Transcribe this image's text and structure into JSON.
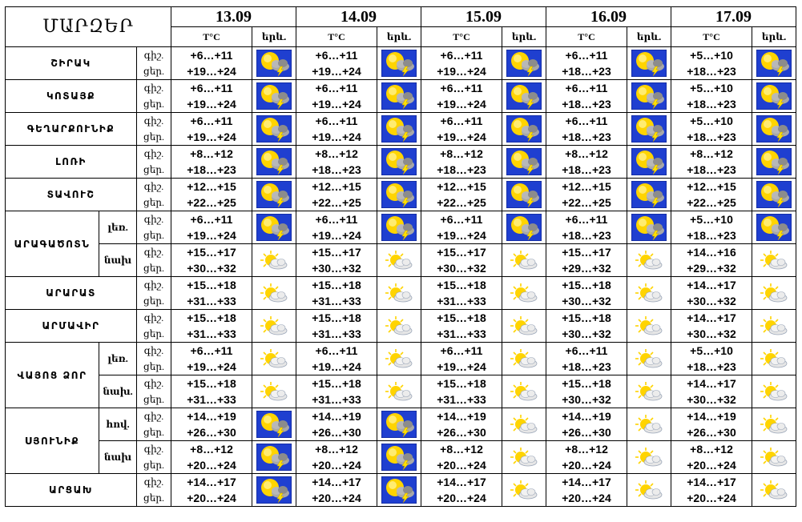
{
  "header": {
    "title": "ՄԱՐԶԵՐ",
    "temp_label": "T°C",
    "weather_label": "երև.",
    "dates": [
      "13.09",
      "14.09",
      "15.09",
      "16.09",
      "17.09"
    ]
  },
  "rows": [
    {
      "region": "ՇԻՐԱԿ",
      "sub": "",
      "night": "գիշ.",
      "day": "ցեր.",
      "cells": [
        [
          "+6…+11",
          "+19…+24",
          "storm"
        ],
        [
          "+6…+11",
          "+19…+24",
          "storm"
        ],
        [
          "+6…+11",
          "+19…+24",
          "storm"
        ],
        [
          "+6…+11",
          "+18…+23",
          "storm"
        ],
        [
          "+5…+10",
          "+18…+23",
          "storm"
        ]
      ]
    },
    {
      "region": "ԿՈՏԱՅՔ",
      "sub": "",
      "night": "գիշ.",
      "day": "ցեր.",
      "cells": [
        [
          "+6…+11",
          "+19…+24",
          "storm"
        ],
        [
          "+6…+11",
          "+19…+24",
          "storm"
        ],
        [
          "+6…+11",
          "+19…+24",
          "storm"
        ],
        [
          "+6…+11",
          "+18…+23",
          "storm"
        ],
        [
          "+5…+10",
          "+18…+23",
          "storm"
        ]
      ]
    },
    {
      "region": "ԳԵՂԱՐՔՈՒՆԻՔ",
      "sub": "",
      "night": "գիշ.",
      "day": "ցեր.",
      "cells": [
        [
          "+6…+11",
          "+19…+24",
          "storm"
        ],
        [
          "+6…+11",
          "+19…+24",
          "storm"
        ],
        [
          "+6…+11",
          "+19…+24",
          "storm"
        ],
        [
          "+6…+11",
          "+18…+23",
          "storm"
        ],
        [
          "+5…+10",
          "+18…+23",
          "storm"
        ]
      ]
    },
    {
      "region": "ԼՈՌԻ",
      "sub": "",
      "night": "գիշ.",
      "day": "ցեր.",
      "cells": [
        [
          "+8…+12",
          "+18…+23",
          "storm"
        ],
        [
          "+8…+12",
          "+18…+23",
          "storm"
        ],
        [
          "+8…+12",
          "+18…+23",
          "storm"
        ],
        [
          "+8…+12",
          "+18…+23",
          "storm"
        ],
        [
          "+8…+12",
          "+18…+23",
          "storm"
        ]
      ]
    },
    {
      "region": "ՏԱՎՈՒՇ",
      "sub": "",
      "night": "գիշ.",
      "day": "ցեր.",
      "cells": [
        [
          "+12…+15",
          "+22…+25",
          "storm"
        ],
        [
          "+12…+15",
          "+22…+25",
          "storm"
        ],
        [
          "+12…+15",
          "+22…+25",
          "storm"
        ],
        [
          "+12…+15",
          "+22…+25",
          "storm"
        ],
        [
          "+12…+15",
          "+22…+25",
          "storm"
        ]
      ]
    },
    {
      "region": "ԱՐԱԳԱԾՈՏՆ",
      "sub": "լեռ.",
      "night": "գիշ.",
      "day": "ցեր.",
      "cells": [
        [
          "+6…+11",
          "+19…+24",
          "storm"
        ],
        [
          "+6…+11",
          "+19…+24",
          "storm"
        ],
        [
          "+6…+11",
          "+19…+24",
          "storm"
        ],
        [
          "+6…+11",
          "+18…+23",
          "storm"
        ],
        [
          "+5…+10",
          "+18…+23",
          "storm"
        ]
      ]
    },
    {
      "region": "",
      "sub": "նախ",
      "night": "գիշ.",
      "day": "ցեր.",
      "cells": [
        [
          "+15…+17",
          "+30…+32",
          "sun"
        ],
        [
          "+15…+17",
          "+30…+32",
          "sun"
        ],
        [
          "+15…+17",
          "+30…+32",
          "sun"
        ],
        [
          "+15…+17",
          "+29…+32",
          "sun"
        ],
        [
          "+14…+16",
          "+29…+32",
          "sun"
        ]
      ]
    },
    {
      "region": "ԱՐԱՐԱՏ",
      "sub": "",
      "night": "գիշ.",
      "day": "ցեր.",
      "cells": [
        [
          "+15…+18",
          "+31…+33",
          "sun"
        ],
        [
          "+15…+18",
          "+31…+33",
          "sun"
        ],
        [
          "+15…+18",
          "+31…+33",
          "sun"
        ],
        [
          "+15…+18",
          "+30…+32",
          "sun"
        ],
        [
          "+14…+17",
          "+30…+32",
          "sun"
        ]
      ]
    },
    {
      "region": "ԱՐՄԱՎԻՐ",
      "sub": "",
      "night": "գիշ.",
      "day": "ցեր.",
      "cells": [
        [
          "+15…+18",
          "+31…+33",
          "sun"
        ],
        [
          "+15…+18",
          "+31…+33",
          "sun"
        ],
        [
          "+15…+18",
          "+31…+33",
          "sun"
        ],
        [
          "+15…+18",
          "+30…+32",
          "sun"
        ],
        [
          "+14…+17",
          "+30…+32",
          "sun"
        ]
      ]
    },
    {
      "region": "ՎԱՅՈՑ ՁՈՐ",
      "sub": "լեռ.",
      "night": "գիշ.",
      "day": "ցեր.",
      "cells": [
        [
          "+6…+11",
          "+19…+24",
          "sun"
        ],
        [
          "+6…+11",
          "+19…+24",
          "sun"
        ],
        [
          "+6…+11",
          "+19…+24",
          "sun"
        ],
        [
          "+6…+11",
          "+18…+23",
          "sun"
        ],
        [
          "+5…+10",
          "+18…+23",
          "sun"
        ]
      ]
    },
    {
      "region": "",
      "sub": "նախ.",
      "night": "գիշ.",
      "day": "ցեր.",
      "cells": [
        [
          "+15…+18",
          "+31…+33",
          "sun"
        ],
        [
          "+15…+18",
          "+31…+33",
          "sun"
        ],
        [
          "+15…+18",
          "+31…+33",
          "sun"
        ],
        [
          "+15…+18",
          "+30…+32",
          "sun"
        ],
        [
          "+14…+17",
          "+30…+32",
          "sun"
        ]
      ]
    },
    {
      "region": "ՍՅՈՒՆԻՔ",
      "sub": "հով.",
      "night": "գիշ.",
      "day": "ցեր.",
      "cells": [
        [
          "+14…+19",
          "+26…+30",
          "storm"
        ],
        [
          "+14…+19",
          "+26…+30",
          "storm"
        ],
        [
          "+14…+19",
          "+26…+30",
          "sun"
        ],
        [
          "+14…+19",
          "+26…+30",
          "sun"
        ],
        [
          "+14…+19",
          "+26…+30",
          "sun"
        ]
      ]
    },
    {
      "region": "",
      "sub": "նախ",
      "night": "գիշ.",
      "day": "ցեր.",
      "cells": [
        [
          "+8…+12",
          "+20…+24",
          "storm"
        ],
        [
          "+8…+12",
          "+20…+24",
          "storm"
        ],
        [
          "+8…+12",
          "+20…+24",
          "sun"
        ],
        [
          "+8…+12",
          "+20…+24",
          "sun"
        ],
        [
          "+8…+12",
          "+20…+24",
          "sun"
        ]
      ]
    },
    {
      "region": "ԱՐՑԱԽ",
      "sub": "",
      "night": "գիշ.",
      "day": "ցեր.",
      "cells": [
        [
          "+14…+17",
          "+20…+24",
          "storm"
        ],
        [
          "+14…+17",
          "+20…+24",
          "storm"
        ],
        [
          "+14…+17",
          "+20…+24",
          "sun"
        ],
        [
          "+14…+17",
          "+20…+24",
          "sun"
        ],
        [
          "+14…+17",
          "+20…+24",
          "sun"
        ]
      ]
    }
  ],
  "icons": {
    "storm": "thunderstorm-icon",
    "sun": "partly-sunny-icon"
  },
  "colors": {
    "storm_sky": "#1f3fd0",
    "sun": "#ffd400",
    "cloud": "#8c8c8c",
    "bolt": "#ffe000"
  }
}
